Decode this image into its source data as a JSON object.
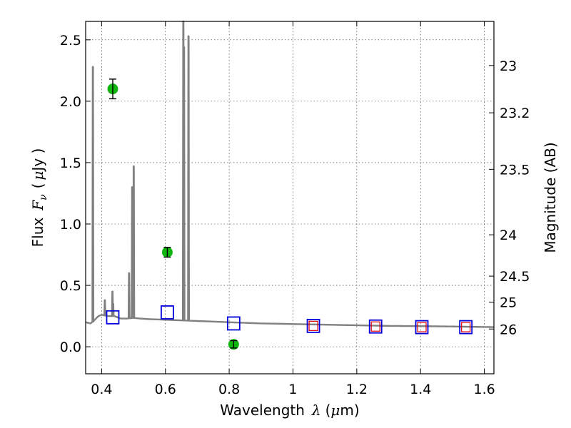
{
  "chart_data": {
    "type": "scatter",
    "xlabel_prefix": "Wavelength",
    "xlabel_var": "λ",
    "xlabel_unit_open": "(",
    "xlabel_unit_mu": "μ",
    "xlabel_unit_rest": "m)",
    "ylabel_prefix": "Flux",
    "ylabel_var": "F",
    "ylabel_sub": "ν",
    "ylabel_unit_open": "(",
    "ylabel_unit_mu": "μ",
    "ylabel_unit_rest": "Jy )",
    "y2label": "Magnitude (AB)",
    "xlim": [
      0.35,
      1.63
    ],
    "ylim": [
      -0.22,
      2.65
    ],
    "xticks": [
      0.4,
      0.6,
      0.8,
      1.0,
      1.2,
      1.4,
      1.6
    ],
    "xtick_labels": [
      "0.4",
      "0.6",
      "0.8",
      "1",
      "1.2",
      "1.4",
      "1.6"
    ],
    "yticks": [
      0.0,
      0.5,
      1.0,
      1.5,
      2.0,
      2.5
    ],
    "ytick_labels": [
      "0.0",
      "0.5",
      "1.0",
      "1.5",
      "2.0",
      "2.5"
    ],
    "y2ticks": [
      23,
      23.2,
      23.5,
      24,
      24.5,
      25,
      26
    ],
    "y2tick_labels": [
      "23",
      "23.2",
      "23.5",
      "24",
      "24.5",
      "25",
      "26"
    ],
    "colors": {
      "spectrum": "#808080",
      "observed": "#10b510",
      "model_blue": "#0000dd",
      "model_red": "#e00000"
    },
    "spectrum_continuum": {
      "x": [
        0.35,
        0.365,
        0.375,
        0.39,
        0.4,
        0.42,
        0.44,
        0.46,
        0.48,
        0.5,
        0.52,
        0.55,
        0.6,
        0.65,
        0.7,
        0.75,
        0.8,
        0.85,
        0.9,
        0.95,
        1.0,
        1.1,
        1.2,
        1.3,
        1.4,
        1.5,
        1.63
      ],
      "y": [
        0.2,
        0.19,
        0.21,
        0.25,
        0.26,
        0.25,
        0.25,
        0.23,
        0.23,
        0.235,
        0.23,
        0.225,
        0.22,
        0.215,
        0.21,
        0.205,
        0.2,
        0.195,
        0.19,
        0.188,
        0.185,
        0.18,
        0.175,
        0.17,
        0.168,
        0.165,
        0.16
      ]
    },
    "spectrum_lines": [
      {
        "x": 0.3727,
        "peak": 2.28
      },
      {
        "x": 0.4102,
        "peak": 0.38
      },
      {
        "x": 0.4341,
        "peak": 0.45
      },
      {
        "x": 0.4363,
        "peak": 0.35
      },
      {
        "x": 0.4861,
        "peak": 0.6
      },
      {
        "x": 0.4959,
        "peak": 1.3
      },
      {
        "x": 0.5007,
        "peak": 1.47
      },
      {
        "x": 0.6563,
        "peak": 2.65
      },
      {
        "x": 0.6584,
        "peak": 2.44
      },
      {
        "x": 0.6725,
        "peak": 2.53
      }
    ],
    "observed_points": [
      {
        "x": 0.435,
        "y": 2.1,
        "err": 0.08
      },
      {
        "x": 0.606,
        "y": 0.77,
        "err": 0.04
      },
      {
        "x": 0.814,
        "y": 0.02,
        "err": 0.03
      }
    ],
    "model_blue_points": [
      {
        "x": 0.435,
        "y": 0.24
      },
      {
        "x": 0.606,
        "y": 0.28
      },
      {
        "x": 0.814,
        "y": 0.19
      },
      {
        "x": 1.064,
        "y": 0.17
      },
      {
        "x": 1.259,
        "y": 0.165
      },
      {
        "x": 1.404,
        "y": 0.16
      },
      {
        "x": 1.542,
        "y": 0.16
      }
    ],
    "model_red_points": [
      {
        "x": 1.064,
        "y": 0.17
      },
      {
        "x": 1.259,
        "y": 0.165
      },
      {
        "x": 1.404,
        "y": 0.16
      },
      {
        "x": 1.542,
        "y": 0.16
      }
    ]
  }
}
